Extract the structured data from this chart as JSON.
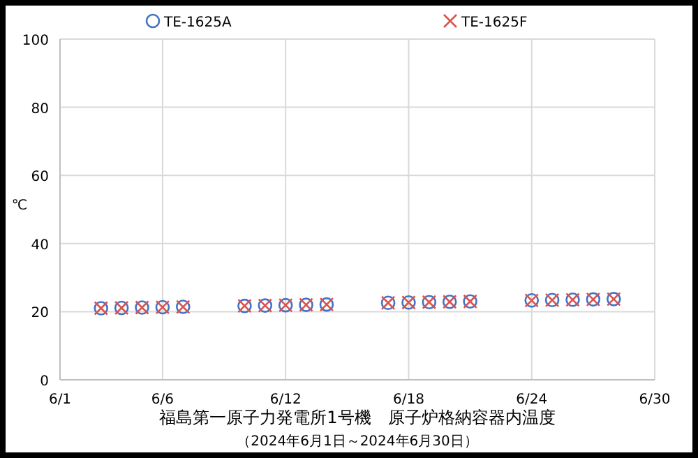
{
  "chart_data": {
    "type": "scatter",
    "title": "福島第一原子力発電所1号機　原子炉格納容器内温度",
    "subtitle": "（2024年6月1日～2024年6月30日）",
    "ylabel": "℃",
    "x": [
      "--06-03",
      "--06-04",
      "--06-05",
      "--06-06",
      "--06-07",
      "--06-10",
      "--06-11",
      "--06-12",
      "--06-13",
      "--06-14",
      "--06-17",
      "--06-18",
      "--06-19",
      "--06-20",
      "--06-21",
      "--06-24",
      "--06-25",
      "--06-26",
      "--06-27",
      "--06-28"
    ],
    "series": [
      {
        "name": "TE-1625A",
        "color": "#4472c4",
        "marker": "circle",
        "values": [
          21.0,
          21.1,
          21.2,
          21.3,
          21.4,
          21.7,
          21.8,
          21.9,
          22.0,
          22.1,
          22.6,
          22.7,
          22.8,
          22.9,
          23.0,
          23.3,
          23.4,
          23.5,
          23.6,
          23.7
        ]
      },
      {
        "name": "TE-1625F",
        "color": "#d9534f",
        "marker": "cross",
        "values": [
          21.0,
          21.1,
          21.2,
          21.3,
          21.4,
          21.7,
          21.8,
          21.9,
          22.0,
          22.1,
          22.6,
          22.7,
          22.8,
          22.9,
          23.0,
          23.3,
          23.4,
          23.5,
          23.6,
          23.7
        ]
      }
    ],
    "xlim": [
      "--06-01",
      "--06-30"
    ],
    "xticks": [
      {
        "value": "--06-01",
        "label": "6/1"
      },
      {
        "value": "--06-06",
        "label": "6/6"
      },
      {
        "value": "--06-12",
        "label": "6/12"
      },
      {
        "value": "--06-18",
        "label": "6/18"
      },
      {
        "value": "--06-24",
        "label": "6/24"
      },
      {
        "value": "--06-30",
        "label": "6/30"
      }
    ],
    "ylim": [
      0,
      100
    ],
    "yticks": [
      0,
      20,
      40,
      60,
      80,
      100
    ],
    "grid": true,
    "legend": "top"
  }
}
